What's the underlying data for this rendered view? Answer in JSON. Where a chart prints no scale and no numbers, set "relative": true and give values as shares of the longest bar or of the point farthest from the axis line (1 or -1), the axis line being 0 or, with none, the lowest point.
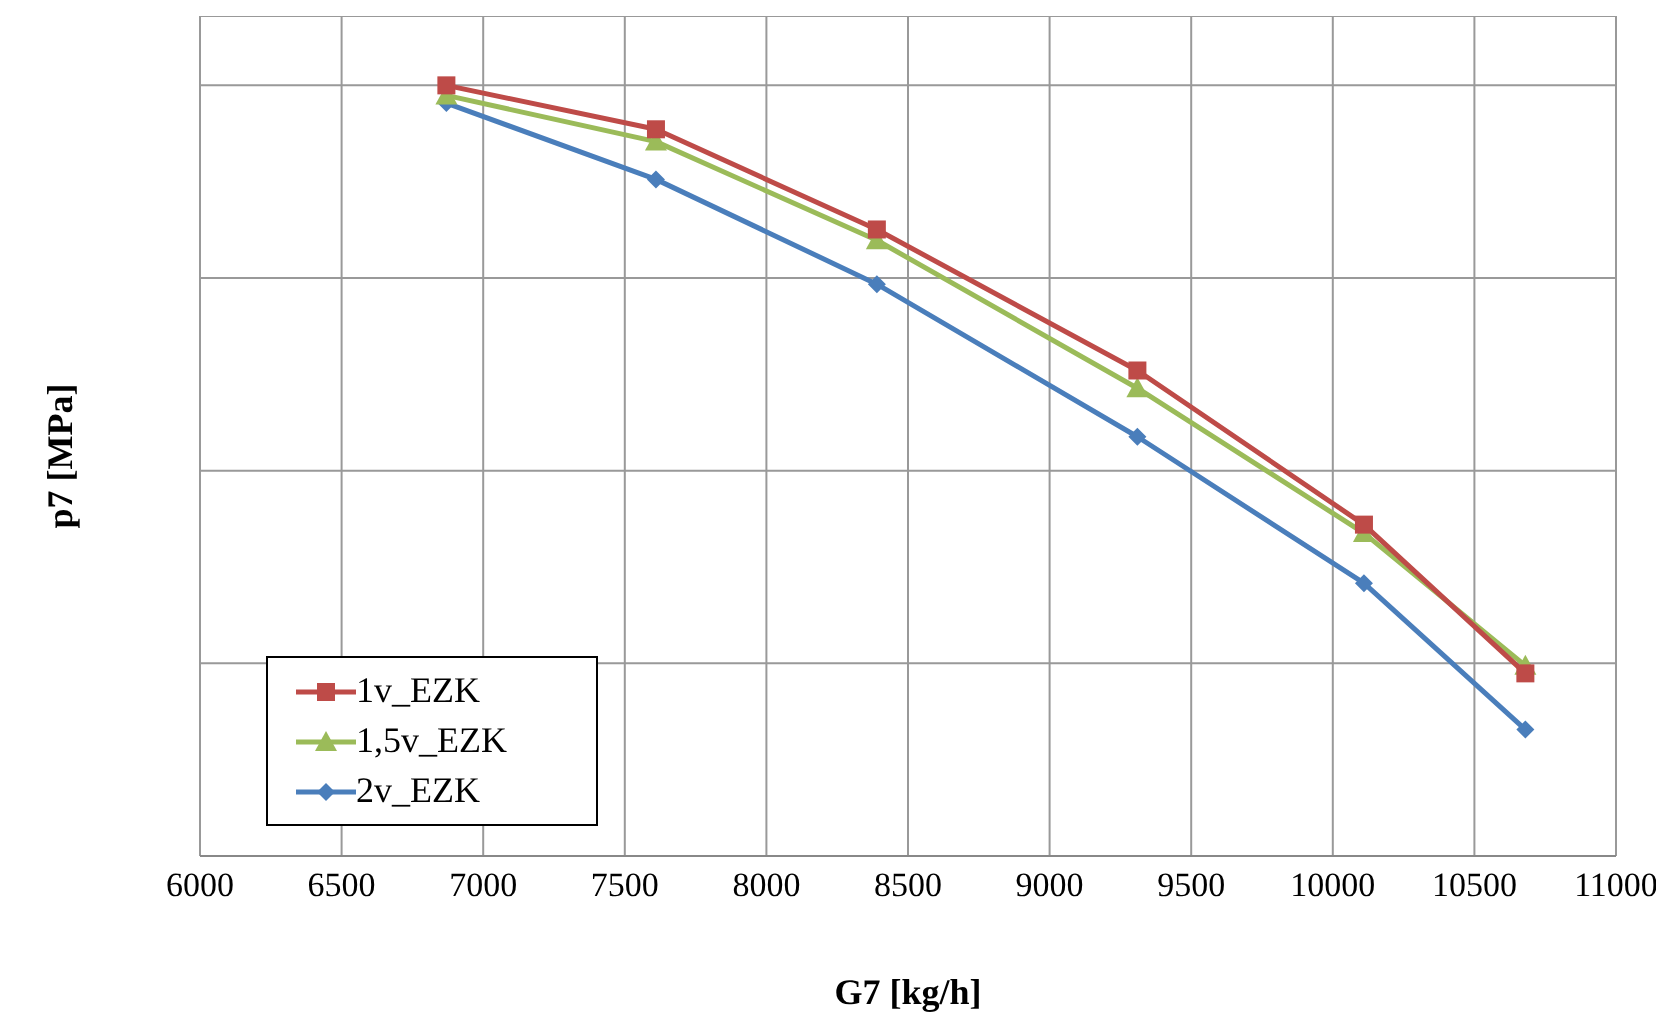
{
  "chart_data": {
    "type": "line",
    "xlabel": "G7 [kg/h]",
    "ylabel": "p7 [MPa]",
    "relative": true,
    "xlim": [
      6000,
      11000
    ],
    "xticks": [
      6000,
      6500,
      7000,
      7500,
      8000,
      8500,
      9000,
      9500,
      10000,
      10500,
      11000
    ],
    "grid": true,
    "legend": "bottom left",
    "line_style": "solid",
    "x": [
      6870,
      7610,
      8390,
      9310,
      10110,
      10680
    ],
    "series": [
      {
        "name": "1v_EZK",
        "color": "#be4b48",
        "marker": "square",
        "values": [
          1,
          0.943,
          0.813,
          0.63,
          0.43,
          0.237
        ]
      },
      {
        "name": "1,5v_EZK",
        "color": "#9bbb59",
        "marker": "triangle",
        "values": [
          0.987,
          0.927,
          0.799,
          0.607,
          0.419,
          0.247
        ]
      },
      {
        "name": "2v_EZK",
        "color": "#4a7ebb",
        "marker": "diamond",
        "values": [
          0.977,
          0.878,
          0.742,
          0.544,
          0.354,
          0.164
        ]
      }
    ]
  }
}
